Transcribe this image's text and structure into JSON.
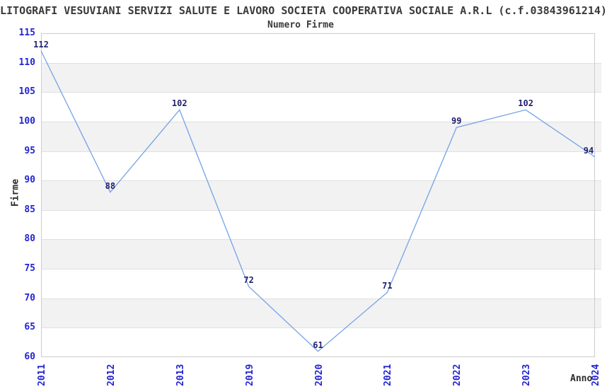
{
  "header": {
    "title": "LITOGRAFI VESUVIANI SERVIZI SALUTE E LAVORO SOCIETA COOPERATIVA SOCIALE A.R.L (c.f.03843961214)"
  },
  "chart_data": {
    "type": "line",
    "title": "Numero Firme",
    "xlabel": "Anno",
    "ylabel": "Firme",
    "categories": [
      "2011",
      "2012",
      "2013",
      "2019",
      "2020",
      "2021",
      "2022",
      "2023",
      "2024"
    ],
    "values": [
      112,
      88,
      102,
      72,
      61,
      71,
      99,
      102,
      94
    ],
    "ylim": [
      60,
      115
    ],
    "ytick_step": 5,
    "yticks": [
      60,
      65,
      70,
      75,
      80,
      85,
      90,
      95,
      100,
      105,
      110,
      115
    ],
    "grid": true,
    "legend": "none",
    "band_alternation": "white band 115-110 then alternating gray every 5 units",
    "colors": {
      "line": "#74a3e6",
      "axis_tick_labels": "#2424d2",
      "data_labels": "#1f1f6e",
      "band_fill": "#f2f2f2",
      "gridline": "#e0e0e0",
      "plot_border": "#cccccc",
      "title_text": "#3a3a3a",
      "background": "#ffffff"
    }
  }
}
